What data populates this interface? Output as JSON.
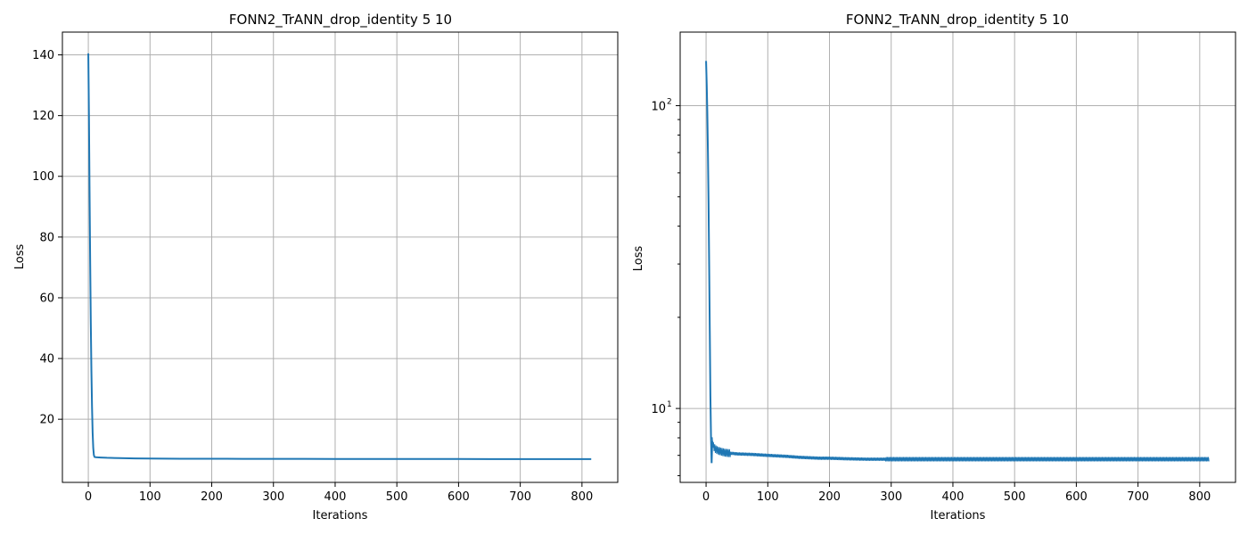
{
  "chart_data": [
    {
      "type": "line",
      "title": "FONN2_TrANN_drop_identity 5 10",
      "xlabel": "Iterations",
      "ylabel": "Loss",
      "yscale": "linear",
      "xlim": [
        -42,
        858
      ],
      "ylim": [
        -0.8,
        147.5
      ],
      "grid": true,
      "line_color": "#1f77b4",
      "x_ticks": [
        0,
        100,
        200,
        300,
        400,
        500,
        600,
        700,
        800
      ],
      "y_ticks": [
        20,
        40,
        60,
        80,
        100,
        120,
        140
      ],
      "series": [
        {
          "x": [
            0,
            1,
            2,
            3,
            4,
            5,
            6,
            7,
            8,
            9,
            10,
            12,
            15,
            20,
            30,
            50,
            75,
            100,
            150,
            200,
            250,
            300,
            350,
            400,
            450,
            500,
            550,
            600,
            650,
            700,
            750,
            800,
            815
          ],
          "y": [
            140.5,
            120,
            95,
            72,
            52,
            36,
            24,
            15.5,
            10.5,
            8.2,
            7.6,
            7.5,
            7.45,
            7.4,
            7.3,
            7.2,
            7.1,
            7.05,
            7.0,
            6.98,
            6.95,
            6.95,
            6.93,
            6.92,
            6.92,
            6.9,
            6.9,
            6.9,
            6.88,
            6.88,
            6.88,
            6.88,
            6.88
          ]
        }
      ]
    },
    {
      "type": "line",
      "title": "FONN2_TrANN_drop_identity 5 10",
      "xlabel": "Iterations",
      "ylabel": "Loss",
      "yscale": "log",
      "xlim": [
        -42,
        858
      ],
      "ylim": [
        5.7,
        175
      ],
      "grid": true,
      "line_color": "#1f77b4",
      "x_ticks": [
        0,
        100,
        200,
        300,
        400,
        500,
        600,
        700,
        800
      ],
      "y_major_ticks": [
        {
          "value": 10,
          "base": "10",
          "exp": "1"
        },
        {
          "value": 100,
          "base": "10",
          "exp": "2"
        }
      ],
      "y_minor_ticks": [
        6,
        7,
        8,
        9,
        20,
        30,
        40,
        50,
        60,
        70,
        80,
        90
      ],
      "series": [
        {
          "x": [
            0,
            1,
            2,
            3,
            4,
            5,
            6,
            7,
            8,
            9,
            10,
            12,
            15,
            20,
            30,
            50,
            75,
            100,
            130,
            150,
            185,
            200,
            230,
            260,
            300,
            350,
            400,
            450,
            500,
            550,
            600,
            650,
            700,
            750,
            800,
            815
          ],
          "y": [
            140.5,
            118,
            95,
            70,
            48,
            30,
            18,
            11,
            8.0,
            6.6,
            7.8,
            7.5,
            7.35,
            7.25,
            7.15,
            7.08,
            7.05,
            7.0,
            6.95,
            6.9,
            6.85,
            6.85,
            6.82,
            6.8,
            6.8,
            6.8,
            6.8,
            6.8,
            6.8,
            6.8,
            6.8,
            6.8,
            6.8,
            6.8,
            6.8,
            6.8
          ],
          "noise_band": {
            "from_x": 10,
            "to_x": 815,
            "relative_amplitude": 0.012
          }
        }
      ]
    }
  ]
}
